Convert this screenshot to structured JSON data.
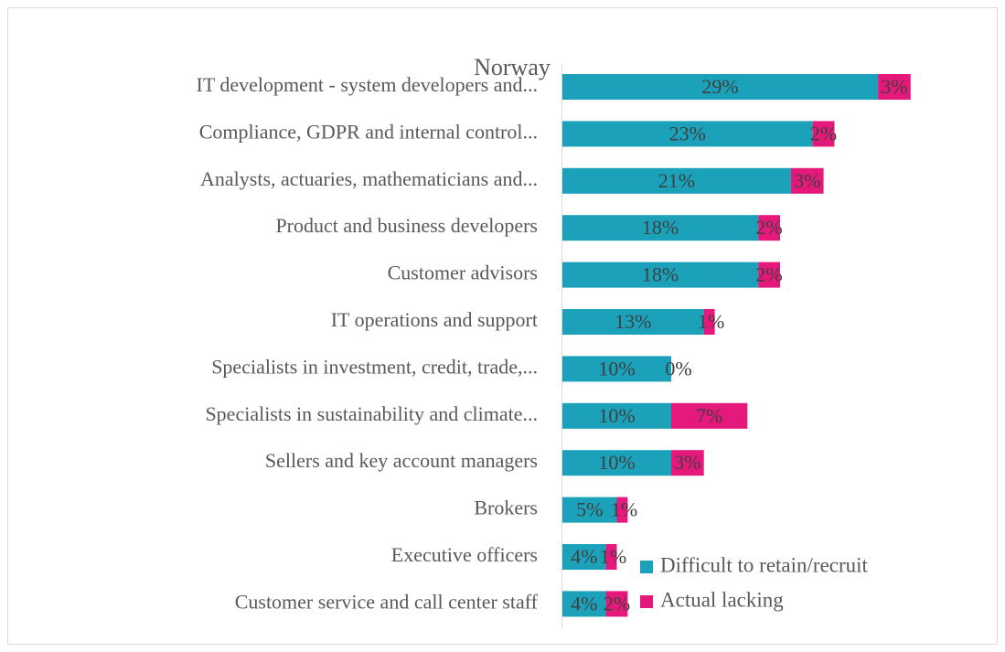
{
  "chart_data": {
    "type": "stacked_barh",
    "title": "Norway",
    "categories": [
      "IT development - system developers and...",
      "Compliance, GDPR and internal control...",
      "Analysts, actuaries, mathematicians and...",
      "Product and business developers",
      "Customer advisors",
      "IT operations and support",
      "Specialists in investment, credit, trade,...",
      "Specialists in sustainability and climate...",
      "Sellers and key account managers",
      "Brokers",
      "Executive officers",
      "Customer service and call center staff"
    ],
    "series": [
      {
        "name": "Difficult to retain/recruit",
        "color": "#1ba1b9",
        "values": [
          29,
          23,
          21,
          18,
          18,
          13,
          10,
          10,
          10,
          5,
          4,
          4
        ],
        "value_labels": [
          "29%",
          "23%",
          "21%",
          "18%",
          "18%",
          "13%",
          "10%",
          "10%",
          "10%",
          "5%",
          "4%",
          "4%"
        ]
      },
      {
        "name": "Actual lacking",
        "color": "#e5187b",
        "values": [
          3,
          2,
          3,
          2,
          2,
          1,
          0,
          7,
          3,
          1,
          1,
          2
        ],
        "value_labels": [
          "3%",
          "2%",
          "3%",
          "2%",
          "2%",
          "1%",
          "0%",
          "7%",
          "3%",
          "1%",
          "1%",
          "2%"
        ]
      }
    ]
  }
}
